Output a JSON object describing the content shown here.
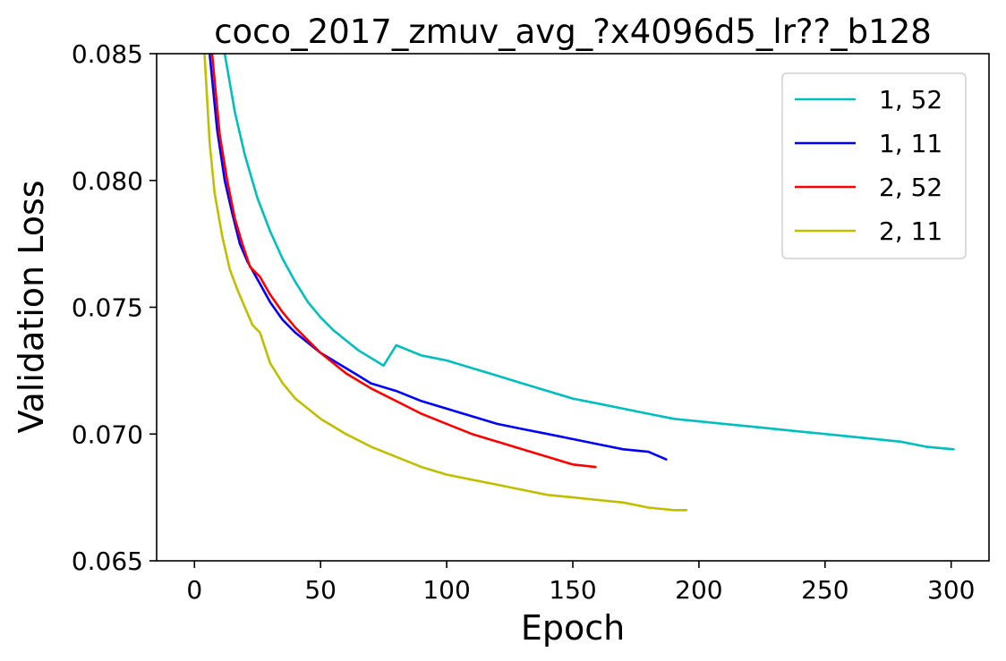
{
  "chart_data": {
    "type": "line",
    "title": "coco_2017_zmuv_avg_?x4096d5_lr??_b128",
    "xlabel": "Epoch",
    "ylabel": "Validation Loss",
    "xlim": [
      -15,
      315
    ],
    "ylim": [
      0.065,
      0.085
    ],
    "xticks": [
      0,
      50,
      100,
      150,
      200,
      250,
      300
    ],
    "yticks": [
      0.065,
      0.07,
      0.075,
      0.08,
      0.085
    ],
    "xtick_labels": [
      "0",
      "50",
      "100",
      "150",
      "200",
      "250",
      "300"
    ],
    "ytick_labels": [
      "0.065",
      "0.070",
      "0.075",
      "0.080",
      "0.085"
    ],
    "grid": false,
    "legend_position": "top-right",
    "series": [
      {
        "name": "1, 52",
        "color": "#00bfbf",
        "x": [
          12,
          16,
          20,
          25,
          30,
          35,
          40,
          45,
          50,
          55,
          60,
          65,
          70,
          75,
          80,
          85,
          90,
          95,
          100,
          110,
          120,
          130,
          140,
          150,
          160,
          170,
          180,
          190,
          200,
          210,
          220,
          230,
          240,
          250,
          260,
          270,
          280,
          290,
          301
        ],
        "y": [
          0.085,
          0.0827,
          0.081,
          0.0793,
          0.078,
          0.0769,
          0.076,
          0.0752,
          0.0746,
          0.0741,
          0.0737,
          0.0733,
          0.073,
          0.0727,
          0.0735,
          0.0733,
          0.0731,
          0.073,
          0.0729,
          0.0726,
          0.0723,
          0.072,
          0.0717,
          0.0714,
          0.0712,
          0.071,
          0.0708,
          0.0706,
          0.0705,
          0.0704,
          0.0703,
          0.0702,
          0.0701,
          0.07,
          0.0699,
          0.0698,
          0.0697,
          0.0695,
          0.0694
        ]
      },
      {
        "name": "1, 11",
        "color": "#0000ff",
        "x": [
          6,
          9,
          12,
          15,
          18,
          21,
          25,
          30,
          35,
          40,
          45,
          50,
          55,
          60,
          65,
          70,
          80,
          90,
          100,
          110,
          120,
          130,
          140,
          150,
          160,
          170,
          180,
          187
        ],
        "y": [
          0.085,
          0.082,
          0.08,
          0.0787,
          0.0775,
          0.0768,
          0.0761,
          0.0752,
          0.0745,
          0.074,
          0.0736,
          0.0732,
          0.0729,
          0.0726,
          0.0723,
          0.072,
          0.0717,
          0.0713,
          0.071,
          0.0707,
          0.0704,
          0.0702,
          0.07,
          0.0698,
          0.0696,
          0.0694,
          0.0693,
          0.069
        ]
      },
      {
        "name": "2, 52",
        "color": "#ff0000",
        "x": [
          7,
          10,
          13,
          16,
          19,
          22,
          26,
          30,
          35,
          40,
          45,
          50,
          55,
          60,
          65,
          70,
          80,
          90,
          100,
          110,
          120,
          130,
          140,
          150,
          159
        ],
        "y": [
          0.085,
          0.0818,
          0.08,
          0.0785,
          0.0775,
          0.0766,
          0.0762,
          0.0755,
          0.0748,
          0.0742,
          0.0737,
          0.0732,
          0.0728,
          0.0724,
          0.0721,
          0.0718,
          0.0713,
          0.0708,
          0.0704,
          0.07,
          0.0697,
          0.0694,
          0.0691,
          0.0688,
          0.0687
        ]
      },
      {
        "name": "2, 11",
        "color": "#bfbf00",
        "x": [
          4,
          6,
          8,
          11,
          14,
          17,
          20,
          23,
          26,
          30,
          35,
          40,
          45,
          50,
          55,
          60,
          70,
          80,
          90,
          100,
          110,
          120,
          130,
          140,
          150,
          160,
          170,
          180,
          190,
          195
        ],
        "y": [
          0.085,
          0.0815,
          0.0795,
          0.0778,
          0.0765,
          0.0757,
          0.075,
          0.0743,
          0.074,
          0.0728,
          0.072,
          0.0714,
          0.071,
          0.0706,
          0.0703,
          0.07,
          0.0695,
          0.0691,
          0.0687,
          0.0684,
          0.0682,
          0.068,
          0.0678,
          0.0676,
          0.0675,
          0.0674,
          0.0673,
          0.0671,
          0.067,
          0.067
        ]
      }
    ]
  }
}
